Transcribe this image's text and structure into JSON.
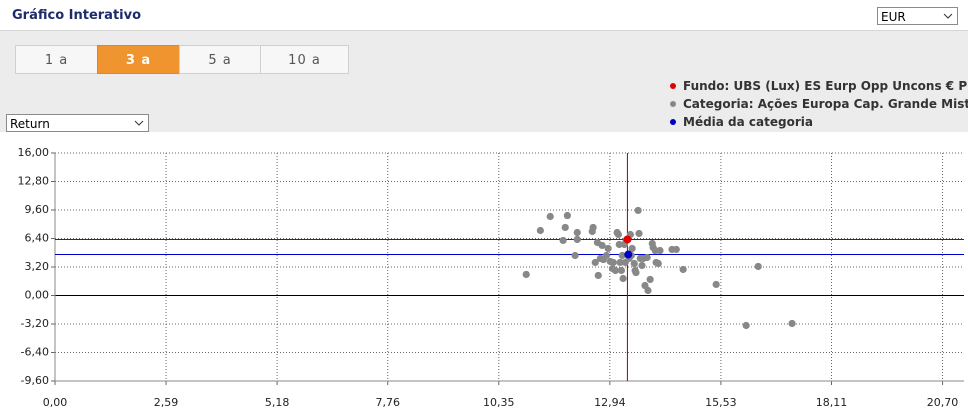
{
  "ui": {
    "title": "Gráfico Interativo",
    "currency": "EUR",
    "tabs": [
      "1 a",
      "3 a",
      "5 a",
      "10 a"
    ],
    "active_tab": 1,
    "metric": "Return"
  },
  "chart_data": {
    "type": "scatter",
    "xlim": [
      0,
      21.2
    ],
    "ylim": [
      -9.6,
      16
    ],
    "xticks": [
      {
        "value": 0,
        "label": "0,00"
      },
      {
        "value": 2.59,
        "label": "2,59"
      },
      {
        "value": 5.18,
        "label": "5,18"
      },
      {
        "value": 7.76,
        "label": "7,76"
      },
      {
        "value": 10.35,
        "label": "10,35"
      },
      {
        "value": 12.94,
        "label": "12,94"
      },
      {
        "value": 15.53,
        "label": "15,53"
      },
      {
        "value": 18.11,
        "label": "18,11"
      },
      {
        "value": 20.7,
        "label": "20,70"
      }
    ],
    "yticks": [
      {
        "value": 16,
        "label": "16,00"
      },
      {
        "value": 12.8,
        "label": "12,80"
      },
      {
        "value": 9.6,
        "label": "9,60"
      },
      {
        "value": 6.4,
        "label": "6,40"
      },
      {
        "value": 3.2,
        "label": "3,20"
      },
      {
        "value": 0,
        "label": "0,00"
      },
      {
        "value": -3.2,
        "label": "-3,20"
      },
      {
        "value": -6.4,
        "label": "-6,40"
      },
      {
        "value": -9.6,
        "label": "-9,60"
      }
    ],
    "grid": true,
    "series": [
      {
        "name": "Categoria: Ações Europa Cap. Grande Misto",
        "color": "#888888",
        "x": [
          10.99,
          11.32,
          11.55,
          11.95,
          11.9,
          11.85,
          12.18,
          12.18,
          12.13,
          12.55,
          12.53,
          12.65,
          12.76,
          12.67,
          12.72,
          12.86,
          12.95,
          13.0,
          13.07,
          13.11,
          13.14,
          13.02,
          13.18,
          13.21,
          13.25,
          13.3,
          13.32,
          13.28,
          13.39,
          13.44,
          13.42,
          13.46,
          13.51,
          13.53,
          13.55,
          13.6,
          13.62,
          13.65,
          13.69,
          13.76,
          13.83,
          13.88,
          13.81,
          13.93,
          13.95,
          14.0,
          14.02,
          14.07,
          14.11,
          14.39,
          14.49,
          14.65,
          15.42,
          16.4,
          16.12,
          17.19,
          12.9,
          12.79,
          12.6,
          13.16,
          13.23,
          13.72
        ],
        "values": [
          2.36,
          7.3,
          8.87,
          8.98,
          7.64,
          6.18,
          7.07,
          6.29,
          4.49,
          7.64,
          7.19,
          5.95,
          5.62,
          2.25,
          4.16,
          4.49,
          3.82,
          3.03,
          2.81,
          7.07,
          6.85,
          3.71,
          3.71,
          2.81,
          1.91,
          3.71,
          6.18,
          5.73,
          4.16,
          4.49,
          6.85,
          5.28,
          3.59,
          2.81,
          2.58,
          9.55,
          6.96,
          4.16,
          3.37,
          1.12,
          0.56,
          1.8,
          4.27,
          5.84,
          5.39,
          5.05,
          3.71,
          3.59,
          5.05,
          5.17,
          5.17,
          2.92,
          1.24,
          3.26,
          -3.37,
          -3.14,
          5.28,
          4.04,
          3.71,
          5.73,
          4.49,
          4.16
        ]
      },
      {
        "name": "Média da categoria",
        "color": "#0000cc",
        "x": [
          13.37
        ],
        "values": [
          4.6
        ]
      },
      {
        "name": "Fundo: UBS (Lux) ES Eurp Opp Uncons € P",
        "color": "#e00000",
        "x": [
          13.35
        ],
        "values": [
          6.29
        ]
      }
    ]
  }
}
